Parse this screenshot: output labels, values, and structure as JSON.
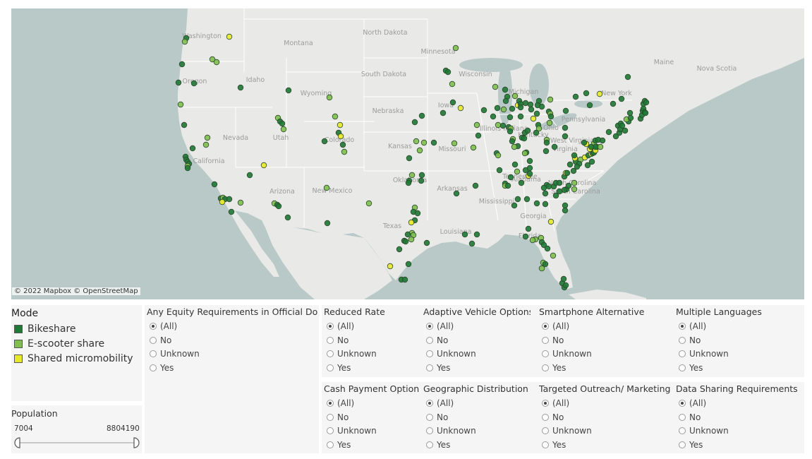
{
  "map": {
    "attribution": "© 2022 Mapbox  © OpenStreetMap",
    "colors": {
      "land": "#e9e9e7",
      "water": "#b9c9c8",
      "borders": "#ffffff",
      "label": "#9c9c9c"
    },
    "state_labels": [
      "Washington",
      "Oregon",
      "California",
      "Nevada",
      "Idaho",
      "Montana",
      "Wyoming",
      "Utah",
      "Colorado",
      "Arizona",
      "New Mexico",
      "North Dakota",
      "South Dakota",
      "Nebraska",
      "Kansas",
      "Oklahoma",
      "Texas",
      "Minnesota",
      "Iowa",
      "Missouri",
      "Arkansas",
      "Louisiana",
      "Wisconsin",
      "Illinois",
      "Michigan",
      "Indiana",
      "Ohio",
      "Kentucky",
      "Tennessee",
      "Mississippi",
      "Alabama",
      "Georgia",
      "Florida",
      "South Carolina",
      "North Carolina",
      "Virginia",
      "West Virginia",
      "Pennsylvania",
      "New York",
      "Maine",
      "Nova Scotia"
    ]
  },
  "legend": {
    "title": "Mode",
    "items": [
      {
        "label": "Bikeshare",
        "color": "#1f7a36"
      },
      {
        "label": "E-scooter share",
        "color": "#7fbf4f"
      },
      {
        "label": "Shared micromobility",
        "color": "#e8e82a"
      }
    ]
  },
  "population": {
    "title": "Population",
    "min": "7004",
    "max": "8804190"
  },
  "filters": [
    {
      "title": "Any Equity Requirements in Official Do...",
      "options": [
        "(All)",
        "No",
        "Unknown",
        "Yes"
      ],
      "selected": 0
    },
    {
      "title": "Reduced Rate",
      "options": [
        "(All)",
        "No",
        "Unknown",
        "Yes"
      ],
      "selected": 0
    },
    {
      "title": "Adaptive Vehicle Options",
      "options": [
        "(All)",
        "No",
        "Unknown",
        "Yes"
      ],
      "selected": 0
    },
    {
      "title": "Smartphone Alternative",
      "options": [
        "(All)",
        "No",
        "Unknown",
        "Yes"
      ],
      "selected": 0
    },
    {
      "title": "Multiple Languages",
      "options": [
        "(All)",
        "No",
        "Unknown",
        "Yes"
      ],
      "selected": 0
    },
    {
      "title": "Cash Payment Option",
      "options": [
        "(All)",
        "No",
        "Unknown",
        "Yes"
      ],
      "selected": 0
    },
    {
      "title": "Geographic Distribution",
      "options": [
        "(All)",
        "No",
        "Unknown",
        "Yes"
      ],
      "selected": 0
    },
    {
      "title": "Targeted Outreach/ Marketing",
      "options": [
        "(All)",
        "No",
        "Unknown",
        "Yes"
      ],
      "selected": 0
    },
    {
      "title": "Data Sharing Requirements",
      "options": [
        "(All)",
        "No",
        "Unknown",
        "Yes"
      ],
      "selected": 0
    }
  ]
}
